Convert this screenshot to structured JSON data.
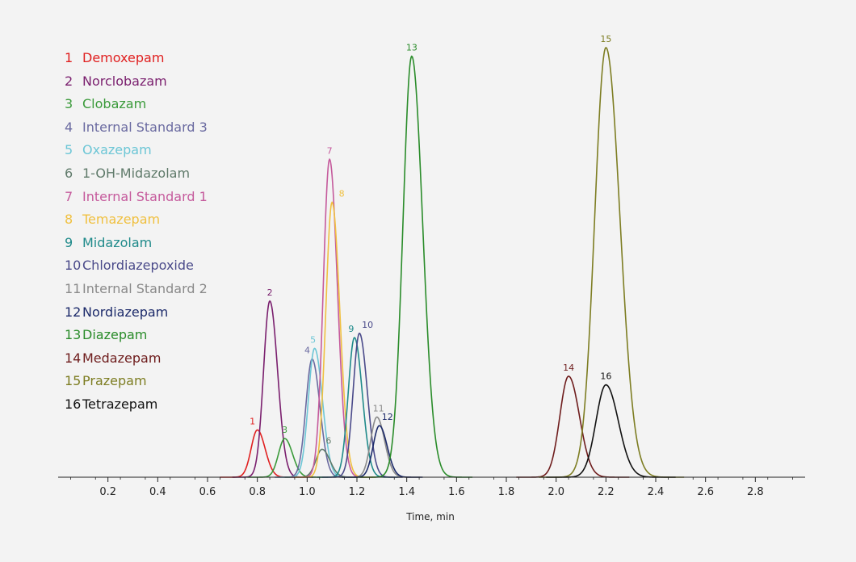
{
  "chart_data": {
    "type": "line",
    "xlabel": "Time, min",
    "ylabel": "",
    "xlim": [
      0,
      3.0
    ],
    "ylim": [
      0,
      100
    ],
    "x_ticks": [
      "0.2",
      "0.4",
      "0.6",
      "0.8",
      "1.0",
      "1.2",
      "1.4",
      "1.6",
      "1.8",
      "2.0",
      "2.2",
      "2.4",
      "2.6",
      "2.8"
    ],
    "grid": false,
    "legend_placement": "top-left",
    "series": [
      {
        "name": "Demoxepam",
        "label": "1",
        "color": "#e02020",
        "peak_time": 0.8,
        "height": 11,
        "width": 0.025
      },
      {
        "name": "Norclobazam",
        "label": "2",
        "color": "#7a1f6e",
        "peak_time": 0.85,
        "height": 41,
        "width": 0.025
      },
      {
        "name": "Clobazam",
        "label": "3",
        "color": "#3a9a3a",
        "peak_time": 0.91,
        "height": 9,
        "width": 0.025
      },
      {
        "name": "Internal Standard 3",
        "label": "4",
        "color": "#6a6aa0",
        "peak_time": 1.02,
        "height": 27.5,
        "width": 0.025
      },
      {
        "name": "Oxazepam",
        "label": "5",
        "color": "#6cc6d6",
        "peak_time": 1.03,
        "height": 30,
        "width": 0.025
      },
      {
        "name": "1-OH-Midazolam",
        "label": "6",
        "color": "#5f7a6a",
        "peak_time": 1.06,
        "height": 6.5,
        "width": 0.025
      },
      {
        "name": "Internal Standard 1",
        "label": "7",
        "color": "#c55a9c",
        "peak_time": 1.09,
        "height": 74,
        "width": 0.025
      },
      {
        "name": "Temazepam",
        "label": "8",
        "color": "#f0c040",
        "peak_time": 1.1,
        "height": 64,
        "width": 0.025
      },
      {
        "name": "Midazolam",
        "label": "9",
        "color": "#1f8a8a",
        "peak_time": 1.19,
        "height": 32.5,
        "width": 0.025
      },
      {
        "name": "Chlordiazepoxide",
        "label": "10",
        "color": "#4a4a8a",
        "peak_time": 1.21,
        "height": 33.5,
        "width": 0.025
      },
      {
        "name": "Internal Standard 2",
        "label": "11",
        "color": "#8a8a8a",
        "peak_time": 1.28,
        "height": 14,
        "width": 0.025
      },
      {
        "name": "Nordiazepam",
        "label": "12",
        "color": "#1c2a6a",
        "peak_time": 1.29,
        "height": 12,
        "width": 0.025
      },
      {
        "name": "Diazepam",
        "label": "13",
        "color": "#2a8c2a",
        "peak_time": 1.42,
        "height": 98,
        "width": 0.035
      },
      {
        "name": "Medazepam",
        "label": "14",
        "color": "#6e1c1c",
        "peak_time": 2.05,
        "height": 23.5,
        "width": 0.035
      },
      {
        "name": "Prazepam",
        "label": "15",
        "color": "#7d7d22",
        "peak_time": 2.2,
        "height": 100,
        "width": 0.045
      },
      {
        "name": "Tetrazepam",
        "label": "16",
        "color": "#111111",
        "peak_time": 2.2,
        "height": 21.5,
        "width": 0.04
      }
    ]
  }
}
